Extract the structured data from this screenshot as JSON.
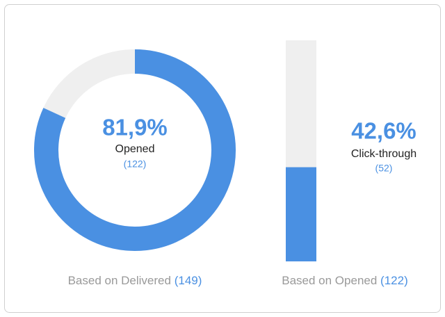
{
  "chart_data": [
    {
      "type": "donut",
      "values": [
        81.9
      ],
      "value_labels": [
        "81,9%"
      ],
      "ylim": [
        0,
        100
      ],
      "color": "#4a90e2",
      "track_color": "#efefef",
      "label": "Opened",
      "count_label": "(122)",
      "basis": "Based on Delivered",
      "basis_count_label": "(149)"
    },
    {
      "type": "bar",
      "values": [
        42.6
      ],
      "value_labels": [
        "42,6%"
      ],
      "ylim": [
        0,
        100
      ],
      "color": "#4a90e2",
      "track_color": "#efefef",
      "label": "Click-through",
      "count_label": "(52)",
      "basis": "Based on Opened",
      "basis_count_label": "(122)"
    }
  ]
}
